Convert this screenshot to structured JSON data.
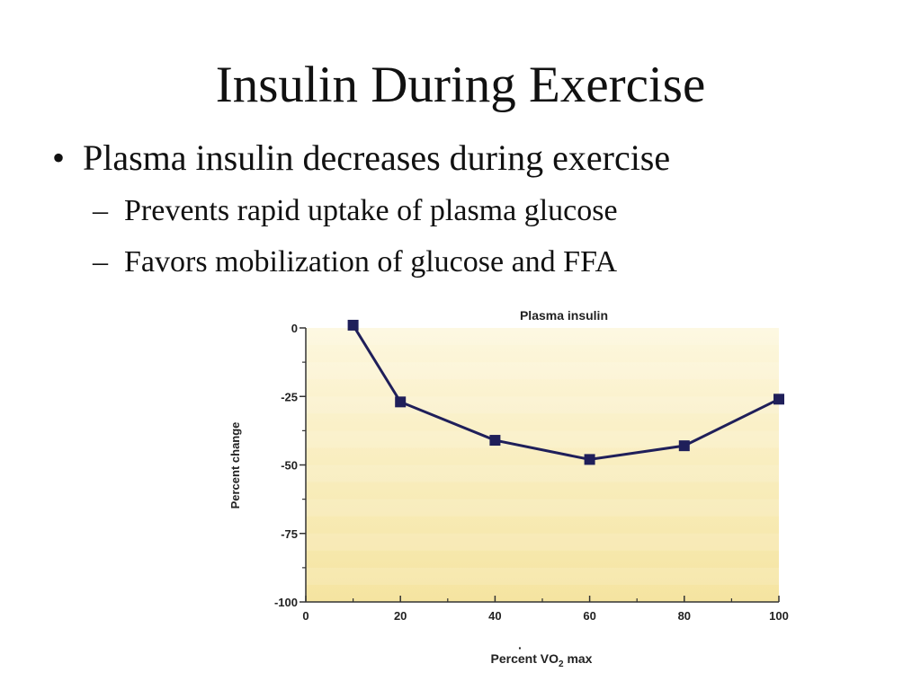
{
  "slide": {
    "title": "Insulin During Exercise",
    "bullets": [
      {
        "marker": "•",
        "text": "Plasma insulin decreases during exercise"
      },
      {
        "marker": "–",
        "text": "Prevents rapid uptake of plasma glucose"
      },
      {
        "marker": "–",
        "text": "Favors mobilization of glucose and FFA"
      }
    ]
  },
  "chart_data": {
    "type": "line",
    "title": "Plasma insulin",
    "xlabel_prefix": "Percent ",
    "xlabel_v": "V",
    "xlabel_o": "O",
    "xlabel_sub": "2",
    "xlabel_suffix": " max",
    "ylabel": "Percent change",
    "xlim": [
      0,
      100
    ],
    "ylim": [
      -100,
      0
    ],
    "xticks": [
      0,
      20,
      40,
      60,
      80,
      100
    ],
    "yticks": [
      0,
      -25,
      -50,
      -75,
      -100
    ],
    "x": [
      10,
      20,
      40,
      60,
      80,
      100
    ],
    "y": [
      1,
      -27,
      -41,
      -48,
      -43,
      -26
    ],
    "colors": {
      "line": "#1f1f5a",
      "marker": "#1f1f5a",
      "fill_top": "#fdf7de",
      "fill_bottom": "#f5e4a0"
    }
  }
}
